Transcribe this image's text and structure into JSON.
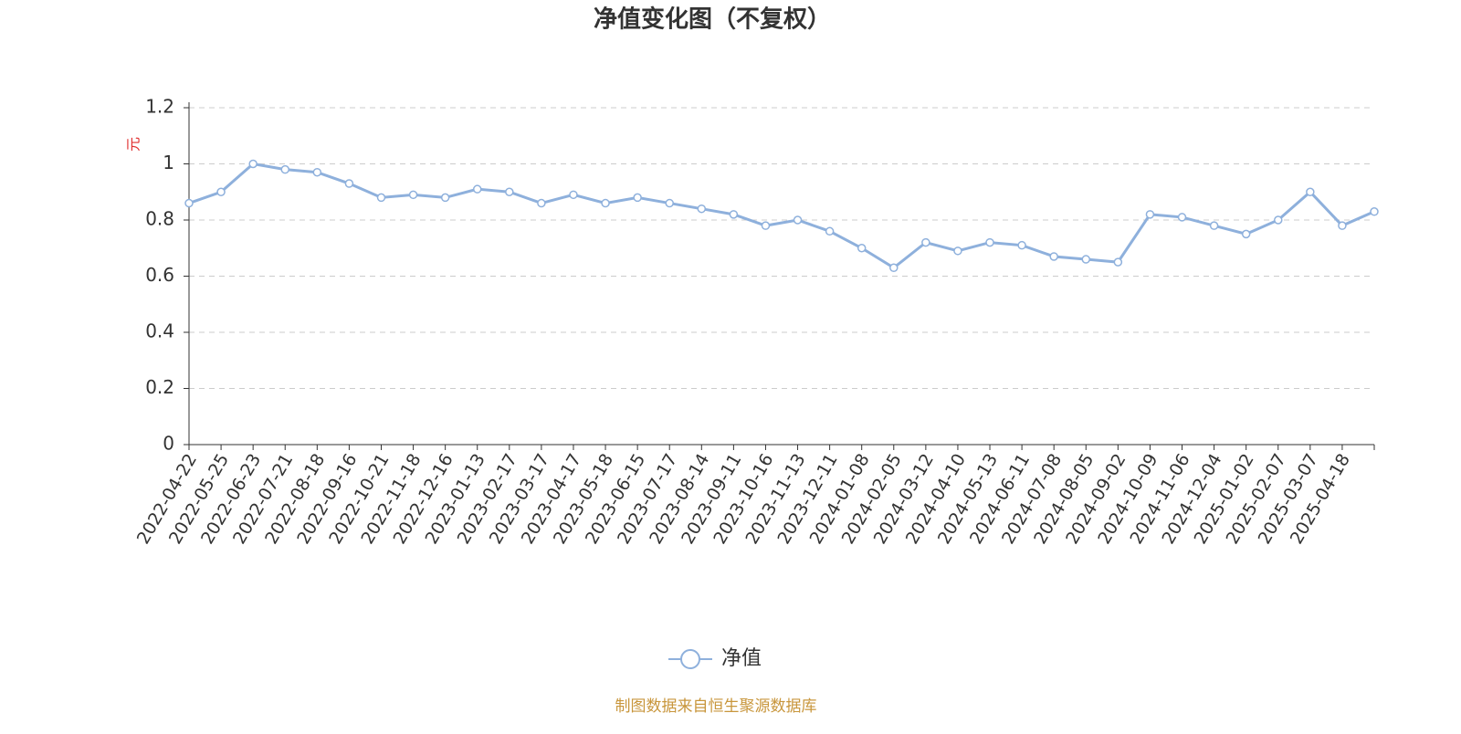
{
  "chart_data": {
    "type": "line",
    "title": "净值变化图（不复权）",
    "y_label": "元",
    "source": "制图数据来自恒生聚源数据库",
    "categories": [
      "2022-04-22",
      "2022-05-25",
      "2022-06-23",
      "2022-07-21",
      "2022-08-18",
      "2022-09-16",
      "2022-10-21",
      "2022-11-18",
      "2022-12-16",
      "2023-01-13",
      "2023-02-17",
      "2023-03-17",
      "2023-04-17",
      "2023-05-18",
      "2023-06-15",
      "2023-07-17",
      "2023-08-14",
      "2023-09-11",
      "2023-10-16",
      "2023-11-13",
      "2023-12-11",
      "2024-01-08",
      "2024-02-05",
      "2024-03-12",
      "2024-04-10",
      "2024-05-13",
      "2024-06-11",
      "2024-07-08",
      "2024-08-05",
      "2024-09-02",
      "2024-10-09",
      "2024-11-06",
      "2024-12-04",
      "2025-01-02",
      "2025-02-07",
      "2025-03-07",
      "2025-04-18",
      null
    ],
    "series": [
      {
        "name": "净值",
        "color": "#8eb0dc",
        "values": [
          0.86,
          0.9,
          1.0,
          0.98,
          0.97,
          0.93,
          0.88,
          0.89,
          0.88,
          0.91,
          0.9,
          0.86,
          0.89,
          0.86,
          0.88,
          0.86,
          0.84,
          0.82,
          0.78,
          0.8,
          0.76,
          0.7,
          0.63,
          0.72,
          0.69,
          0.72,
          0.71,
          0.67,
          0.66,
          0.65,
          0.82,
          0.81,
          0.78,
          0.75,
          0.8,
          0.9,
          0.78,
          0.83
        ]
      }
    ],
    "ylim": [
      0,
      1.2
    ],
    "yticks": [
      0,
      0.2,
      0.4,
      0.6,
      0.8,
      1,
      1.2
    ],
    "grid": true
  }
}
